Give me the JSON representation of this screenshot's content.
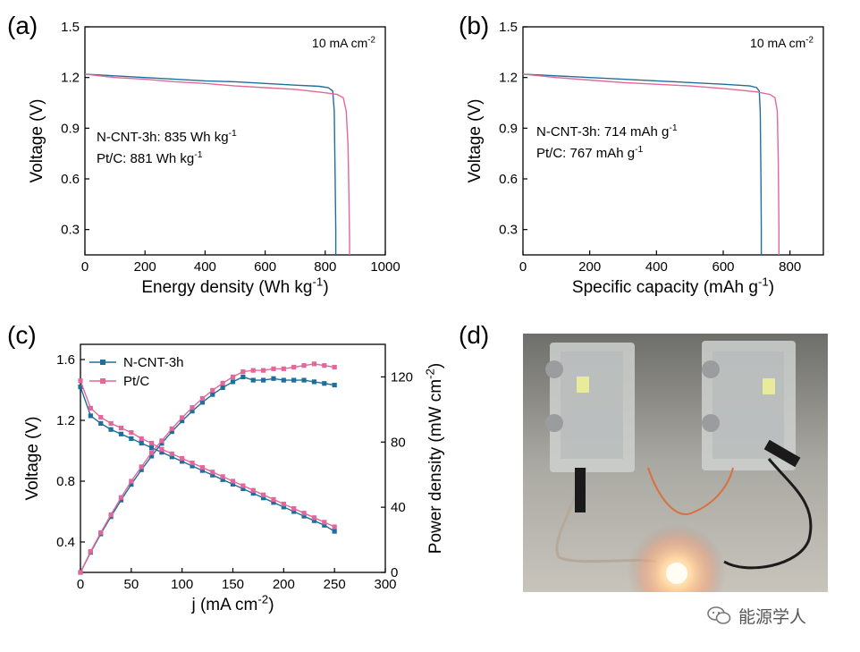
{
  "panels": {
    "a": {
      "letter": "(a)"
    },
    "b": {
      "letter": "(b)"
    },
    "c": {
      "letter": "(c)"
    },
    "d": {
      "letter": "(d)"
    }
  },
  "chart_data": [
    {
      "id": "a",
      "type": "line",
      "xlabel": "Energy density (Wh kg",
      "xlabel_sup": "-1",
      "xlabel_tail": ")",
      "ylabel": "Voltage (V)",
      "xlim": [
        0,
        1000
      ],
      "ylim": [
        0.15,
        1.5
      ],
      "xticks": [
        0,
        200,
        400,
        600,
        800,
        1000
      ],
      "yticks": [
        0.3,
        0.6,
        0.9,
        1.2,
        1.5
      ],
      "ytick_labels": [
        "0.3",
        "0.6",
        "0.9",
        "1.2",
        "1.5"
      ],
      "condition": "10 mA cm",
      "condition_sup": "-2",
      "series": [
        {
          "name": "N-CNT-3h",
          "annotation": "N-CNT-3h: 835 Wh kg",
          "annotation_sup": "-1",
          "color": "#1f6f9c",
          "x": [
            0,
            50,
            100,
            200,
            300,
            400,
            500,
            600,
            700,
            780,
            810,
            825,
            830,
            833,
            835,
            835
          ],
          "y": [
            1.22,
            1.215,
            1.21,
            1.2,
            1.19,
            1.18,
            1.175,
            1.165,
            1.155,
            1.148,
            1.14,
            1.12,
            1.0,
            0.6,
            0.3,
            0.15
          ]
        },
        {
          "name": "Pt/C",
          "annotation": "Pt/C: 881 Wh kg",
          "annotation_sup": "-1",
          "color": "#e2679a",
          "x": [
            0,
            50,
            100,
            200,
            300,
            400,
            500,
            600,
            700,
            800,
            840,
            860,
            870,
            876,
            879,
            881,
            881
          ],
          "y": [
            1.22,
            1.21,
            1.2,
            1.19,
            1.175,
            1.165,
            1.15,
            1.14,
            1.13,
            1.11,
            1.1,
            1.08,
            1.0,
            0.8,
            0.5,
            0.25,
            0.15
          ]
        }
      ]
    },
    {
      "id": "b",
      "type": "line",
      "xlabel": "Specific capacity (mAh g",
      "xlabel_sup": "-1",
      "xlabel_tail": ")",
      "ylabel": "Voltage (V)",
      "xlim": [
        0,
        900
      ],
      "ylim": [
        0.15,
        1.5
      ],
      "xticks": [
        0,
        200,
        400,
        600,
        800
      ],
      "yticks": [
        0.3,
        0.6,
        0.9,
        1.2,
        1.5
      ],
      "ytick_labels": [
        "0.3",
        "0.6",
        "0.9",
        "1.2",
        "1.5"
      ],
      "condition": "10 mA cm",
      "condition_sup": "-2",
      "series": [
        {
          "name": "N-CNT-3h",
          "annotation": "N-CNT-3h: 714 mAh g",
          "annotation_sup": "-1",
          "color": "#1f6f9c",
          "x": [
            0,
            50,
            100,
            200,
            300,
            400,
            500,
            600,
            680,
            700,
            708,
            711,
            713,
            714,
            714
          ],
          "y": [
            1.22,
            1.215,
            1.21,
            1.2,
            1.19,
            1.18,
            1.17,
            1.16,
            1.15,
            1.14,
            1.12,
            1.0,
            0.6,
            0.3,
            0.15
          ]
        },
        {
          "name": "Pt/C",
          "annotation": "Pt/C: 767 mAh g",
          "annotation_sup": "-1",
          "color": "#e2679a",
          "x": [
            0,
            50,
            100,
            200,
            300,
            400,
            500,
            600,
            700,
            740,
            755,
            762,
            765,
            767,
            767
          ],
          "y": [
            1.22,
            1.21,
            1.2,
            1.185,
            1.17,
            1.16,
            1.15,
            1.135,
            1.115,
            1.1,
            1.08,
            1.0,
            0.7,
            0.3,
            0.15
          ]
        }
      ]
    },
    {
      "id": "c",
      "type": "line",
      "xlabel": "j (mA cm",
      "xlabel_sup": "-2",
      "xlabel_tail": ")",
      "ylabel": "Voltage (V)",
      "ylabel_right": "Power density (mW cm",
      "ylabel_right_sup": "-2",
      "ylabel_right_tail": ")",
      "xlim": [
        0,
        300
      ],
      "ylim": [
        0.2,
        1.7
      ],
      "ylim_right": [
        0,
        140
      ],
      "xticks": [
        0,
        50,
        100,
        150,
        200,
        250,
        300
      ],
      "yticks": [
        0.4,
        0.8,
        1.2,
        1.6
      ],
      "ytick_labels": [
        "0.4",
        "0.8",
        "1.2",
        "1.6"
      ],
      "yticks_right": [
        0,
        40,
        80,
        120
      ],
      "series": [
        {
          "name": "N-CNT-3h",
          "color": "#1f6f9c",
          "axis": "left",
          "x": [
            0,
            10,
            20,
            30,
            40,
            50,
            60,
            70,
            80,
            90,
            100,
            110,
            120,
            130,
            140,
            150,
            160,
            170,
            180,
            190,
            200,
            210,
            220,
            230,
            240,
            250
          ],
          "y": [
            1.42,
            1.23,
            1.18,
            1.14,
            1.11,
            1.08,
            1.05,
            1.02,
            0.99,
            0.96,
            0.93,
            0.9,
            0.87,
            0.84,
            0.81,
            0.78,
            0.75,
            0.72,
            0.69,
            0.66,
            0.63,
            0.6,
            0.57,
            0.54,
            0.51,
            0.47
          ]
        },
        {
          "name": "Pt/C",
          "color": "#e2679a",
          "axis": "left",
          "x": [
            0,
            10,
            20,
            30,
            40,
            50,
            60,
            70,
            80,
            90,
            100,
            110,
            120,
            130,
            140,
            150,
            160,
            170,
            180,
            190,
            200,
            210,
            220,
            230,
            240,
            250
          ],
          "y": [
            1.46,
            1.28,
            1.22,
            1.18,
            1.15,
            1.12,
            1.08,
            1.05,
            1.01,
            0.98,
            0.95,
            0.92,
            0.89,
            0.86,
            0.83,
            0.8,
            0.77,
            0.74,
            0.71,
            0.68,
            0.65,
            0.62,
            0.59,
            0.56,
            0.53,
            0.5
          ]
        },
        {
          "name": "N-CNT-3h",
          "color": "#1f6f9c",
          "axis": "right",
          "x": [
            0,
            10,
            20,
            30,
            40,
            50,
            60,
            70,
            80,
            90,
            100,
            110,
            120,
            130,
            140,
            150,
            160,
            170,
            180,
            190,
            200,
            210,
            220,
            230,
            240,
            250
          ],
          "y": [
            0,
            12.3,
            23.6,
            34.2,
            44.4,
            54,
            63,
            71.4,
            79.2,
            86.4,
            93,
            99,
            104.4,
            109.2,
            113.4,
            117,
            120,
            118,
            118,
            119,
            118,
            118,
            118,
            117,
            116,
            115
          ]
        },
        {
          "name": "Pt/C",
          "color": "#e2679a",
          "axis": "right",
          "x": [
            0,
            10,
            20,
            30,
            40,
            50,
            60,
            70,
            80,
            90,
            100,
            110,
            120,
            130,
            140,
            150,
            160,
            170,
            180,
            190,
            200,
            210,
            220,
            230,
            240,
            250
          ],
          "y": [
            0,
            12.8,
            24.4,
            35.4,
            46,
            56,
            64.8,
            73.5,
            80.8,
            88.2,
            95,
            101.2,
            106.8,
            111.8,
            116.2,
            120,
            123.2,
            124,
            124,
            125,
            125,
            126,
            127,
            128,
            127,
            126
          ]
        }
      ]
    }
  ],
  "photo": {
    "description_icon": "fuel-cell-photo"
  },
  "watermark": {
    "icon": "wechat-icon",
    "text": "能源学人"
  }
}
